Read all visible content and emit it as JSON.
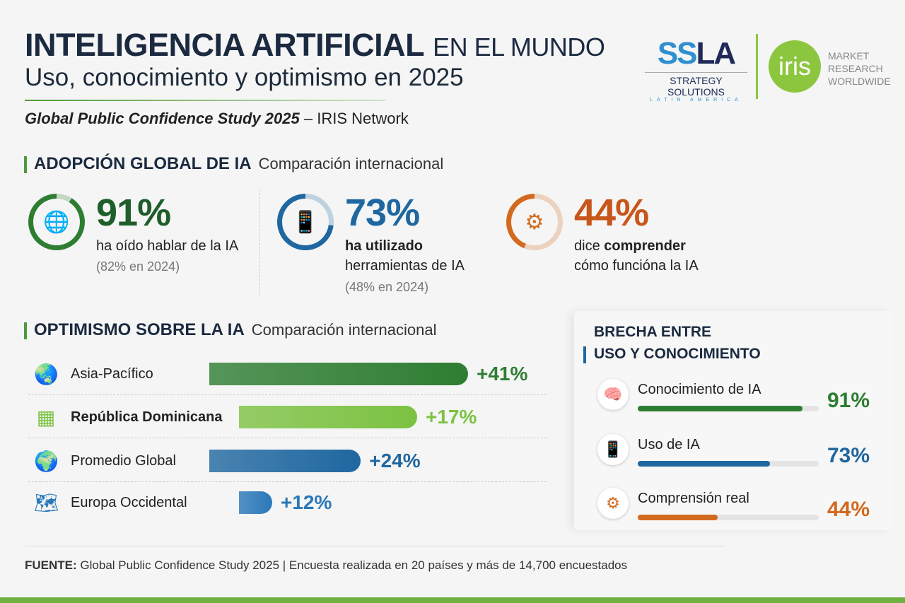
{
  "header": {
    "title_bold": "INTELIGENCIA ARTIFICIAL",
    "title_rest": "EN EL MUNDO",
    "subtitle": "Uso, conocimiento y optimismo en 2025",
    "study_name": "Global Public Confidence Study 2025",
    "study_suffix": "– IRIS Network"
  },
  "logos": {
    "ssla_mark_a": "SS",
    "ssla_mark_b": "LA",
    "ssla_line1": "STRATEGY SOLUTIONS",
    "ssla_line2": "LATIN AMERICA",
    "iris_mark": "iris",
    "iris_lines": [
      "MARKET",
      "RESEARCH",
      "WORLDWIDE"
    ]
  },
  "adoption": {
    "title": "ADOPCIÓN GLOBAL DE IA",
    "subtitle": "Comparación internacional",
    "stats": [
      {
        "value": "91%",
        "label_pre": "ha oído hablar de la IA",
        "label_bold": "",
        "label_post": "",
        "prev": "(82% en 2024)",
        "color": "#2e7d32",
        "icon": "globe-hand-icon",
        "pct": 91
      },
      {
        "value": "73%",
        "label_pre": "",
        "label_bold": "ha utilizado",
        "label_post": "herramientas de IA",
        "prev": "(48% en 2024)",
        "color": "#1f67a0",
        "icon": "tablet-touch-icon",
        "pct": 73
      },
      {
        "value": "44%",
        "label_pre": "dice",
        "label_bold": "comprender",
        "label_post": "cómo funcióna la IA",
        "prev": "",
        "color": "#d2691e",
        "icon": "head-gear-icon",
        "pct": 44
      }
    ]
  },
  "optimism": {
    "title": "OPTIMISMO SOBRE LA IA",
    "subtitle": "Comparación internacional"
  },
  "gap": {
    "title_line1": "BRECHA ENTRE",
    "title_line2": "USO Y CONOCIMIENTO"
  },
  "footer": {
    "label": "FUENTE:",
    "text": "Global Public Confidence Study 2025 | Encuesta realizada en 20 países y más de 14,700 encuestados"
  },
  "chart_data": [
    {
      "type": "bar",
      "title": "OPTIMISMO SOBRE LA IA",
      "categories": [
        "Asia-Pacífico",
        "República Dominicana",
        "Promedio Global",
        "Europa Occidental"
      ],
      "values": [
        41,
        17,
        24,
        12
      ],
      "labels": [
        "+41%",
        "+17%",
        "+24%",
        "+12%"
      ],
      "colors": [
        "#2e7d32",
        "#7cc242",
        "#1f67a0",
        "#2a78b8"
      ],
      "icons": [
        "globe-asia-icon",
        "dominican-flag-icon",
        "globe-icon",
        "europe-map-icon"
      ]
    },
    {
      "type": "bar",
      "title": "BRECHA ENTRE USO Y CONOCIMIENTO",
      "categories": [
        "Conocimiento de IA",
        "Uso de IA",
        "Comprensión real"
      ],
      "values": [
        91,
        73,
        44
      ],
      "labels": [
        "91%",
        "73%",
        "44%"
      ],
      "colors": [
        "#2e7d32",
        "#1f67a0",
        "#d2691e"
      ],
      "ylim": [
        0,
        100
      ]
    }
  ]
}
